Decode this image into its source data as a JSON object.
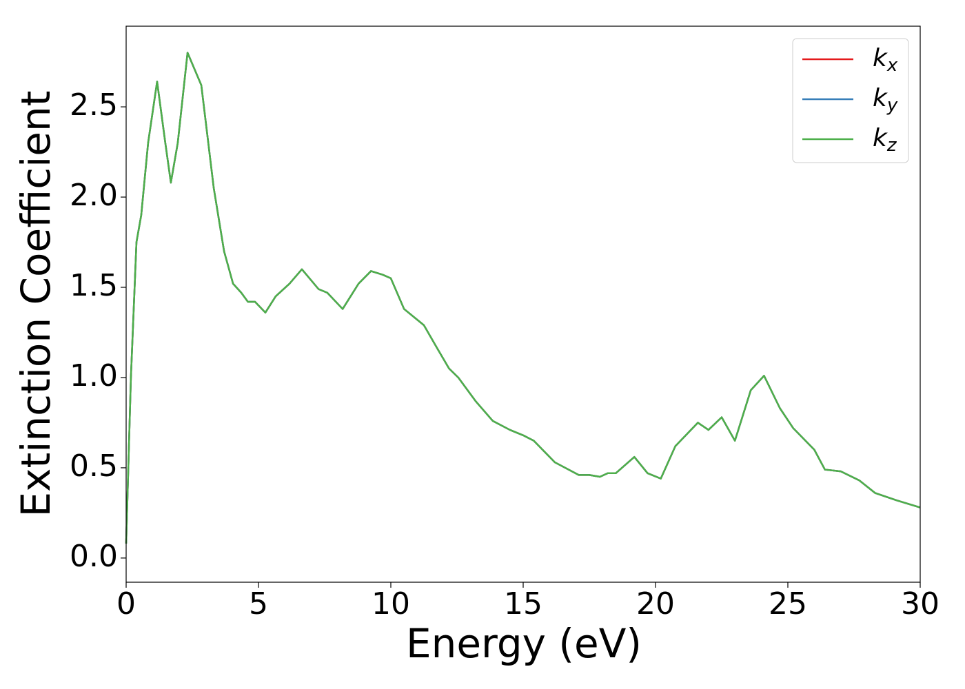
{
  "chart_data": {
    "type": "line",
    "xlabel": "Energy (eV)",
    "ylabel": "Extinction Coefficient",
    "x": [
      0,
      0.18,
      0.39,
      0.57,
      0.83,
      1.17,
      1.48,
      1.69,
      1.95,
      2.32,
      2.84,
      3.31,
      3.7,
      4.04,
      4.35,
      4.6,
      4.87,
      5.26,
      5.65,
      6.17,
      6.64,
      7.27,
      7.6,
      8.18,
      8.78,
      9.25,
      9.69,
      10.0,
      10.5,
      11.25,
      11.8,
      12.2,
      12.55,
      13.2,
      13.85,
      14.5,
      15.0,
      15.4,
      16.2,
      17.1,
      17.5,
      17.9,
      18.2,
      18.5,
      19.2,
      19.7,
      20.2,
      20.75,
      21.6,
      22.0,
      22.5,
      23.0,
      23.6,
      24.1,
      24.7,
      25.2,
      26.0,
      26.4,
      27.0,
      27.7,
      28.3,
      29.1,
      30.0
    ],
    "series": [
      {
        "name": "kx",
        "color": "#e41a1c",
        "values": [
          0.08,
          1.0,
          1.75,
          1.9,
          2.3,
          2.64,
          2.3,
          2.08,
          2.3,
          2.8,
          2.62,
          2.05,
          1.7,
          1.52,
          1.47,
          1.42,
          1.42,
          1.36,
          1.45,
          1.52,
          1.6,
          1.49,
          1.47,
          1.38,
          1.52,
          1.59,
          1.57,
          1.55,
          1.38,
          1.29,
          1.15,
          1.05,
          1.0,
          0.87,
          0.76,
          0.71,
          0.68,
          0.65,
          0.53,
          0.46,
          0.46,
          0.45,
          0.47,
          0.47,
          0.56,
          0.47,
          0.44,
          0.62,
          0.75,
          0.71,
          0.78,
          0.65,
          0.93,
          1.01,
          0.83,
          0.72,
          0.6,
          0.49,
          0.48,
          0.43,
          0.36,
          0.32,
          0.28
        ]
      },
      {
        "name": "ky",
        "color": "#377eb8",
        "values": [
          0.08,
          1.0,
          1.75,
          1.9,
          2.3,
          2.64,
          2.3,
          2.08,
          2.3,
          2.8,
          2.62,
          2.05,
          1.7,
          1.52,
          1.47,
          1.42,
          1.42,
          1.36,
          1.45,
          1.52,
          1.6,
          1.49,
          1.47,
          1.38,
          1.52,
          1.59,
          1.57,
          1.55,
          1.38,
          1.29,
          1.15,
          1.05,
          1.0,
          0.87,
          0.76,
          0.71,
          0.68,
          0.65,
          0.53,
          0.46,
          0.46,
          0.45,
          0.47,
          0.47,
          0.56,
          0.47,
          0.44,
          0.62,
          0.75,
          0.71,
          0.78,
          0.65,
          0.93,
          1.01,
          0.83,
          0.72,
          0.6,
          0.49,
          0.48,
          0.43,
          0.36,
          0.32,
          0.28
        ]
      },
      {
        "name": "kz",
        "color": "#4daf4a",
        "values": [
          0.08,
          1.0,
          1.75,
          1.9,
          2.3,
          2.64,
          2.3,
          2.08,
          2.3,
          2.8,
          2.62,
          2.05,
          1.7,
          1.52,
          1.47,
          1.42,
          1.42,
          1.36,
          1.45,
          1.52,
          1.6,
          1.49,
          1.47,
          1.38,
          1.52,
          1.59,
          1.57,
          1.55,
          1.38,
          1.29,
          1.15,
          1.05,
          1.0,
          0.87,
          0.76,
          0.71,
          0.68,
          0.65,
          0.53,
          0.46,
          0.46,
          0.45,
          0.47,
          0.47,
          0.56,
          0.47,
          0.44,
          0.62,
          0.75,
          0.71,
          0.78,
          0.65,
          0.93,
          1.01,
          0.83,
          0.72,
          0.6,
          0.49,
          0.48,
          0.43,
          0.36,
          0.32,
          0.28
        ]
      }
    ],
    "xlim": [
      0,
      30
    ],
    "xticks": [
      0,
      5,
      10,
      15,
      20,
      25,
      30
    ],
    "ylim": [
      -0.134,
      2.947
    ],
    "yticks": [
      {
        "value": 0,
        "label": "0.0"
      },
      0.5,
      {
        "value": 1,
        "label": "1.0"
      },
      1.5,
      {
        "value": 2,
        "label": "2.0"
      },
      2.5
    ],
    "legend": "upper right"
  }
}
